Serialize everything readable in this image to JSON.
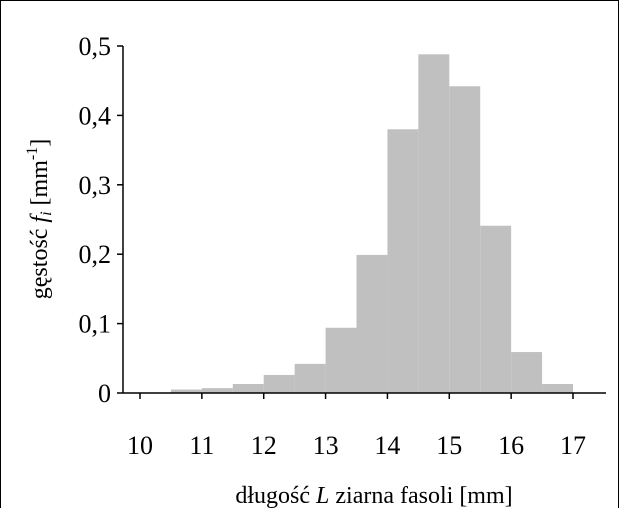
{
  "chart_data": {
    "type": "bar",
    "title": "",
    "xlabel_parts": [
      "długość ",
      "L",
      " ziarna fasoli [mm]"
    ],
    "ylabel_parts": [
      "gęstość ",
      "f",
      "i",
      " [mm",
      "-1",
      "]"
    ],
    "xlim": [
      10,
      17
    ],
    "ylim": [
      0,
      0.5
    ],
    "x_ticks": [
      "10",
      "11",
      "12",
      "13",
      "14",
      "15",
      "16",
      "17"
    ],
    "y_ticks": [
      "0",
      "0,1",
      "0,2",
      "0,3",
      "0,4",
      "0,5"
    ],
    "bin_width": 0.5,
    "bins": [
      {
        "x0": 10.5,
        "x1": 11.0,
        "value": 0.005
      },
      {
        "x0": 11.0,
        "x1": 11.5,
        "value": 0.007
      },
      {
        "x0": 11.5,
        "x1": 12.0,
        "value": 0.013
      },
      {
        "x0": 12.0,
        "x1": 12.5,
        "value": 0.026
      },
      {
        "x0": 12.5,
        "x1": 13.0,
        "value": 0.042
      },
      {
        "x0": 13.0,
        "x1": 13.5,
        "value": 0.094
      },
      {
        "x0": 13.5,
        "x1": 14.0,
        "value": 0.199
      },
      {
        "x0": 14.0,
        "x1": 14.5,
        "value": 0.38
      },
      {
        "x0": 14.5,
        "x1": 15.0,
        "value": 0.488
      },
      {
        "x0": 15.0,
        "x1": 15.5,
        "value": 0.442
      },
      {
        "x0": 15.5,
        "x1": 16.0,
        "value": 0.241
      },
      {
        "x0": 16.0,
        "x1": 16.5,
        "value": 0.059
      },
      {
        "x0": 16.5,
        "x1": 17.0,
        "value": 0.013
      }
    ],
    "bar_color": "#c0c0c0",
    "grid": false
  }
}
